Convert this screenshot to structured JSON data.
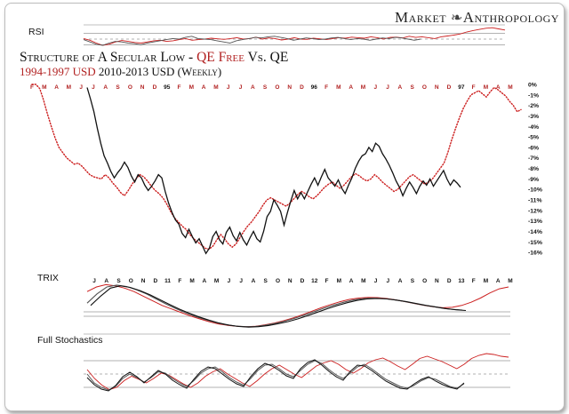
{
  "brand": {
    "left": "Market",
    "right": "Anthropology",
    "logo_icon": "dna-helix-icon"
  },
  "title": {
    "prefix": "Structure of A Secular Low - ",
    "highlight": "QE Free",
    "suffix": " Vs. QE"
  },
  "subtitle": {
    "red_part": "1994-1997 USD",
    "black_part": " 2010-2013 USD (Weekly)"
  },
  "colors": {
    "qe_free": "#cc1f1f",
    "qe": "#111111",
    "accent": "#b22222",
    "ref_line": "#999999"
  },
  "panels": {
    "rsi": "RSI",
    "trix": "TRIX",
    "stoch": "Full Stochastics"
  },
  "chart_data": [
    {
      "type": "line",
      "name": "main",
      "title": "",
      "ylim": [
        -16.5,
        0
      ],
      "y_ticks": [
        0,
        -1,
        -2,
        -3,
        -4,
        -5,
        -6,
        -7,
        -8,
        -9,
        -10,
        -11,
        -12,
        -13,
        -14,
        -15,
        -16
      ],
      "y_tick_labels": [
        "0%",
        "-1%",
        "-2%",
        "-3%",
        "-4%",
        "-5%",
        "-6%",
        "-7%",
        "-8%",
        "-9%",
        "-10%",
        "-11%",
        "-12%",
        "-13%",
        "-14%",
        "-15%",
        "-16%"
      ],
      "x_top_labels": [
        "F",
        "M",
        "A",
        "M",
        "J",
        "J",
        "A",
        "S",
        "O",
        "N",
        "D",
        "95",
        "F",
        "M",
        "A",
        "M",
        "J",
        "J",
        "A",
        "S",
        "O",
        "N",
        "D",
        "96",
        "F",
        "M",
        "A",
        "M",
        "J",
        "J",
        "A",
        "S",
        "O",
        "N",
        "D",
        "97",
        "F",
        "M",
        "A",
        "M"
      ],
      "x_bottom_labels": [
        "J",
        "A",
        "S",
        "O",
        "N",
        "D",
        "11",
        "F",
        "M",
        "A",
        "M",
        "J",
        "J",
        "A",
        "S",
        "O",
        "N",
        "D",
        "12",
        "F",
        "M",
        "A",
        "M",
        "J",
        "J",
        "A",
        "S",
        "O",
        "N",
        "D",
        "13",
        "F",
        "M",
        "A",
        "M"
      ],
      "series": [
        {
          "style": "dotted",
          "color": "#cc1f1f",
          "values": [
            0,
            0,
            -0.4,
            -1.5,
            -2.8,
            -4.0,
            -5.1,
            -6.0,
            -6.5,
            -7.0,
            -7.3,
            -7.6,
            -7.5,
            -7.8,
            -8.2,
            -8.6,
            -8.8,
            -8.9,
            -9.0,
            -8.6,
            -8.9,
            -9.4,
            -9.8,
            -10.3,
            -10.6,
            -10.1,
            -9.5,
            -9.0,
            -8.6,
            -8.8,
            -9.2,
            -9.7,
            -10.1,
            -10.4,
            -10.8,
            -11.4,
            -12.1,
            -12.7,
            -13.1,
            -13.5,
            -13.8,
            -14.3,
            -14.7,
            -15.0,
            -15.3,
            -15.6,
            -15.7,
            -15.4,
            -14.8,
            -14.3,
            -14.7,
            -15.2,
            -15.5,
            -15.2,
            -14.6,
            -14.0,
            -13.5,
            -13.1,
            -12.6,
            -12.1,
            -11.5,
            -11.0,
            -10.8,
            -11.0,
            -11.2,
            -11.4,
            -11.6,
            -11.3,
            -10.9,
            -10.5,
            -10.2,
            -10.4,
            -10.7,
            -10.9,
            -10.6,
            -10.2,
            -9.8,
            -9.5,
            -9.3,
            -9.6,
            -9.9,
            -9.6,
            -9.2,
            -8.8,
            -8.5,
            -8.7,
            -9.0,
            -9.2,
            -9.0,
            -8.6,
            -8.9,
            -9.3,
            -9.6,
            -9.9,
            -10.2,
            -10.0,
            -9.6,
            -9.2,
            -8.8,
            -8.6,
            -8.9,
            -9.2,
            -9.5,
            -9.3,
            -9.0,
            -8.5,
            -8.0,
            -7.5,
            -6.5,
            -5.3,
            -4.2,
            -3.2,
            -2.3,
            -1.6,
            -1.0,
            -0.8,
            -0.6,
            -0.9,
            -1.2,
            -0.7,
            -0.3,
            -0.5,
            -0.8,
            -1.1,
            -1.6,
            -2.0,
            -2.6,
            -2.4
          ]
        },
        {
          "style": "solid",
          "color": "#111111",
          "values": [
            -0.3,
            -1.4,
            -2.6,
            -4.2,
            -5.6,
            -6.8,
            -7.5,
            -8.3,
            -8.9,
            -8.4,
            -8.0,
            -7.4,
            -7.9,
            -8.7,
            -9.3,
            -8.6,
            -8.9,
            -9.6,
            -10.1,
            -9.7,
            -9.2,
            -8.6,
            -8.9,
            -10.2,
            -11.3,
            -12.2,
            -12.9,
            -13.3,
            -14.2,
            -14.6,
            -13.8,
            -14.5,
            -15.1,
            -14.7,
            -15.4,
            -16.1,
            -15.6,
            -14.5,
            -14.0,
            -14.8,
            -15.2,
            -14.1,
            -13.6,
            -14.4,
            -14.9,
            -14.1,
            -14.8,
            -15.3,
            -14.6,
            -14.0,
            -14.7,
            -15.0,
            -14.0,
            -12.6,
            -12.1,
            -11.0,
            -11.5,
            -12.1,
            -13.4,
            -12.2,
            -11.1,
            -10.1,
            -10.9,
            -10.3,
            -10.9,
            -10.2,
            -9.5,
            -8.9,
            -9.6,
            -8.8,
            -8.1,
            -8.9,
            -9.3,
            -9.7,
            -9.1,
            -9.9,
            -10.4,
            -9.6,
            -8.9,
            -8.0,
            -7.3,
            -6.8,
            -6.6,
            -6.0,
            -6.4,
            -5.6,
            -5.9,
            -6.6,
            -7.1,
            -7.7,
            -8.4,
            -9.2,
            -9.8,
            -10.6,
            -9.9,
            -9.3,
            -9.8,
            -10.4,
            -9.7,
            -9.2,
            -9.6,
            -9.0,
            -9.7,
            -9.2,
            -8.7,
            -8.2,
            -9.0,
            -9.6,
            -9.1,
            -9.4,
            -9.8
          ]
        }
      ]
    },
    {
      "type": "line",
      "name": "rsi",
      "ylim": [
        0,
        100
      ],
      "reference_lines": [
        70,
        50,
        30
      ],
      "series": [
        {
          "color": "#cc1f1f",
          "values": [
            52,
            46,
            36,
            28,
            32,
            40,
            45,
            42,
            38,
            36,
            40,
            44,
            46,
            42,
            44,
            48,
            52,
            46,
            48,
            50,
            53,
            51,
            49,
            52,
            55,
            50,
            52,
            57,
            50,
            54,
            52,
            47,
            50,
            55,
            50,
            49,
            53,
            51,
            48,
            52,
            55,
            53,
            57,
            55,
            53,
            58,
            55,
            50,
            56,
            57,
            54,
            60,
            56,
            58,
            55,
            52,
            58,
            61,
            64,
            68,
            75,
            80,
            84,
            88,
            90,
            86,
            82
          ]
        },
        {
          "color": "#555555",
          "values": [
            48,
            40,
            32,
            28,
            36,
            42,
            40,
            36,
            34,
            30,
            36,
            40,
            44,
            48,
            52,
            50,
            56,
            60,
            52,
            50,
            48,
            44,
            40,
            36,
            44,
            48,
            52,
            56,
            54,
            58,
            60,
            56,
            52,
            46,
            50,
            54,
            52,
            48,
            50,
            54,
            56,
            52,
            48,
            52,
            50,
            46,
            50,
            54,
            52,
            56,
            54,
            50,
            46,
            50
          ]
        }
      ]
    },
    {
      "type": "line",
      "name": "trix",
      "series": [
        {
          "color": "#cc1f1f",
          "values": [
            0.8,
            1.0,
            1.1,
            1.05,
            0.95,
            0.8,
            0.6,
            0.4,
            0.2,
            0.05,
            -0.1,
            -0.25,
            -0.38,
            -0.5,
            -0.6,
            -0.66,
            -0.7,
            -0.72,
            -0.7,
            -0.64,
            -0.56,
            -0.46,
            -0.34,
            -0.2,
            -0.05,
            0.1,
            0.24,
            0.36,
            0.46,
            0.52,
            0.55,
            0.54,
            0.5,
            0.44,
            0.36,
            0.28,
            0.2,
            0.14,
            0.1,
            0.12,
            0.2,
            0.34,
            0.52,
            0.74,
            0.92,
            1.0
          ]
        },
        {
          "color": "#555555",
          "values": [
            0.3,
            0.7,
            1.0,
            1.08,
            1.02,
            0.88,
            0.7,
            0.48,
            0.26,
            0.06,
            -0.12,
            -0.28,
            -0.42,
            -0.54,
            -0.63,
            -0.69,
            -0.72,
            -0.71,
            -0.66,
            -0.58,
            -0.48,
            -0.36,
            -0.22,
            -0.07,
            0.08,
            0.22,
            0.34,
            0.44,
            0.5,
            0.52,
            0.5,
            0.45,
            0.38,
            0.3,
            0.22,
            0.15,
            0.08,
            0.03,
            0.0
          ]
        },
        {
          "color": "#111111",
          "values": [
            0.2,
            0.6,
            0.95,
            1.05,
            0.98,
            0.84,
            0.66,
            0.45,
            0.24,
            0.04,
            -0.14,
            -0.3,
            -0.44,
            -0.56,
            -0.65,
            -0.71,
            -0.74,
            -0.72,
            -0.67,
            -0.59,
            -0.5,
            -0.38,
            -0.24,
            -0.09,
            0.06,
            0.2,
            0.32,
            0.42,
            0.48,
            0.5,
            0.48,
            0.43,
            0.36,
            0.28,
            0.2,
            0.13,
            0.06,
            0.01,
            -0.02
          ]
        }
      ]
    },
    {
      "type": "line",
      "name": "stoch",
      "ylim": [
        0,
        100
      ],
      "reference_lines": [
        80,
        50,
        20
      ],
      "series": [
        {
          "color": "#cc1f1f",
          "values": [
            60,
            40,
            25,
            15,
            20,
            35,
            45,
            38,
            30,
            40,
            52,
            48,
            38,
            28,
            20,
            30,
            45,
            55,
            62,
            50,
            40,
            30,
            22,
            35,
            50,
            62,
            70,
            60,
            50,
            42,
            55,
            68,
            75,
            80,
            72,
            60,
            52,
            62,
            75,
            82,
            86,
            78,
            68,
            60,
            72,
            85,
            90,
            84,
            78,
            70,
            62,
            72,
            85,
            92,
            96,
            94,
            90,
            88
          ]
        },
        {
          "color": "#555555",
          "values": [
            50,
            30,
            20,
            14,
            22,
            40,
            50,
            42,
            32,
            42,
            55,
            52,
            40,
            30,
            22,
            35,
            52,
            62,
            66,
            55,
            42,
            32,
            25,
            40,
            58,
            70,
            72,
            62,
            50,
            44,
            58,
            72,
            80,
            74,
            60,
            48,
            40,
            52,
            66,
            72,
            62,
            50,
            38,
            30,
            22,
            18,
            25,
            35,
            42,
            38,
            30,
            22,
            18,
            28
          ]
        },
        {
          "color": "#111111",
          "values": [
            42,
            26,
            16,
            12,
            24,
            44,
            54,
            44,
            30,
            44,
            58,
            50,
            36,
            26,
            18,
            38,
            56,
            66,
            62,
            50,
            38,
            28,
            22,
            44,
            62,
            74,
            68,
            58,
            46,
            40,
            62,
            76,
            82,
            70,
            56,
            44,
            36,
            56,
            70,
            68,
            58,
            46,
            34,
            26,
            18,
            16,
            28,
            38,
            44,
            34,
            26,
            20,
            16,
            30
          ]
        }
      ]
    }
  ]
}
